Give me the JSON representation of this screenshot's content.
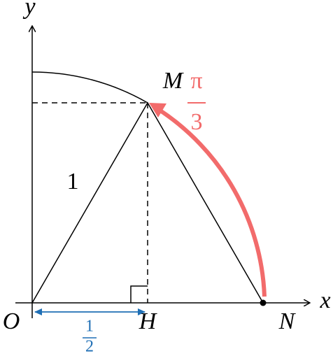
{
  "axes": {
    "x": "x",
    "y": "y"
  },
  "points": {
    "O": "O",
    "H": "H",
    "N": "N",
    "M": "M"
  },
  "side_label": "1",
  "angle": {
    "numerator": "π",
    "denominator": "3"
  },
  "length": {
    "numerator": "1",
    "denominator": "2"
  }
}
